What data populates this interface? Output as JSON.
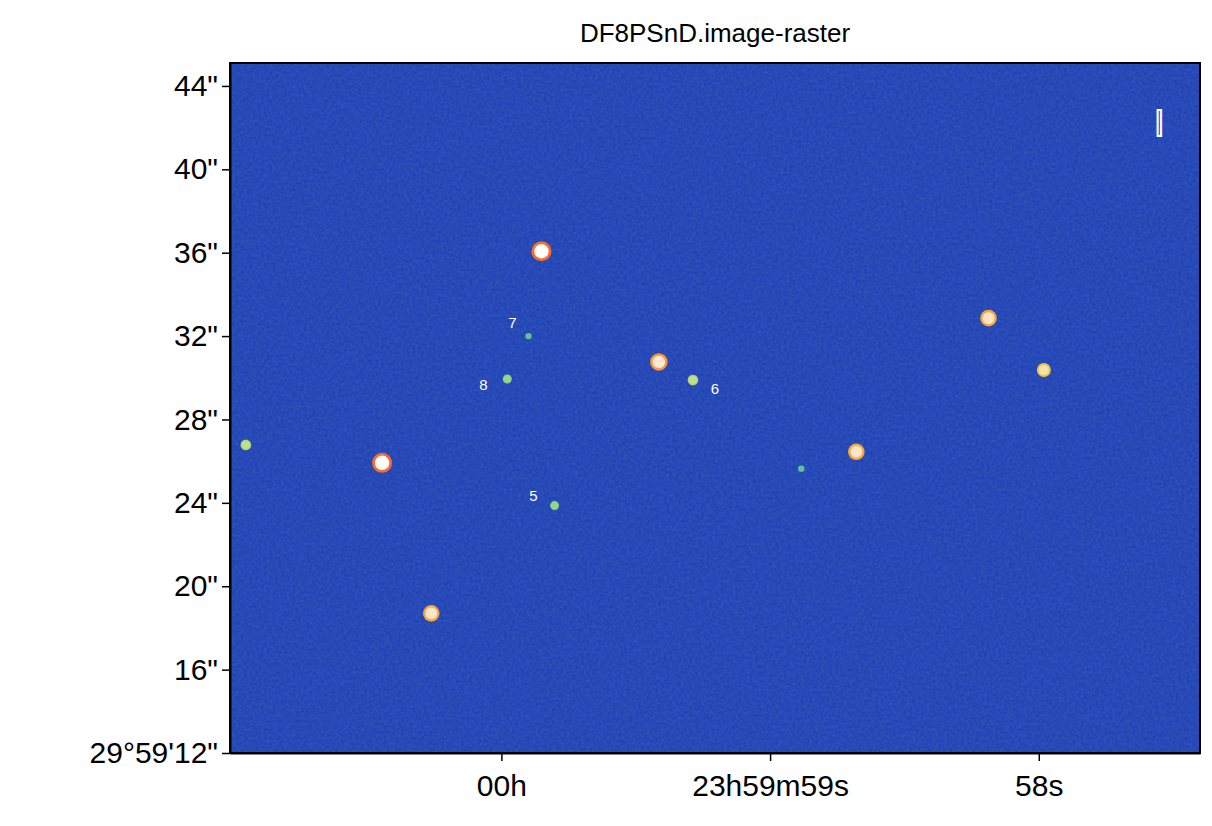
{
  "chart_data": {
    "type": "scatter",
    "title": "DF8PSnD.image-raster",
    "x": [
      59.851,
      60.444,
      60.261,
      59.414,
      59.802,
      59.287,
      59.899,
      59.978,
      58.679,
      58.187,
      57.981,
      60.951,
      58.884
    ],
    "y": [
      36.07,
      25.92,
      18.7,
      30.76,
      23.87,
      29.89,
      32.0,
      29.94,
      26.45,
      32.86,
      30.37,
      26.78,
      25.64
    ],
    "brightness": [
      1.0,
      1.0,
      0.8,
      0.85,
      0.35,
      0.45,
      0.2,
      0.35,
      0.8,
      0.8,
      0.65,
      0.45,
      0.2
    ],
    "xlim": [
      61.01,
      57.4
    ],
    "ylim": [
      12,
      45.1
    ],
    "xticks": [
      {
        "value": 60,
        "label": "00h"
      },
      {
        "value": 59,
        "label": "23h59m59s"
      },
      {
        "value": 58,
        "label": "58s"
      }
    ],
    "yticks": [
      {
        "value": 12,
        "label": "29°59'12\""
      },
      {
        "value": 16,
        "label": "16\""
      },
      {
        "value": 20,
        "label": "20\""
      },
      {
        "value": 24,
        "label": "24\""
      },
      {
        "value": 28,
        "label": "28\""
      },
      {
        "value": 32,
        "label": "32\""
      },
      {
        "value": 36,
        "label": "36\""
      },
      {
        "value": 40,
        "label": "40\""
      },
      {
        "value": 44,
        "label": "44\""
      }
    ],
    "annotations": [
      {
        "text": "5",
        "x": 59.881,
        "y": 24.3
      },
      {
        "text": "6",
        "x": 59.205,
        "y": 29.42
      },
      {
        "text": "7",
        "x": 59.959,
        "y": 32.57
      },
      {
        "text": "8",
        "x": 60.067,
        "y": 29.61
      }
    ],
    "corner_label": {
      "text": "I",
      "x": 57.552,
      "y": 42.05
    }
  }
}
